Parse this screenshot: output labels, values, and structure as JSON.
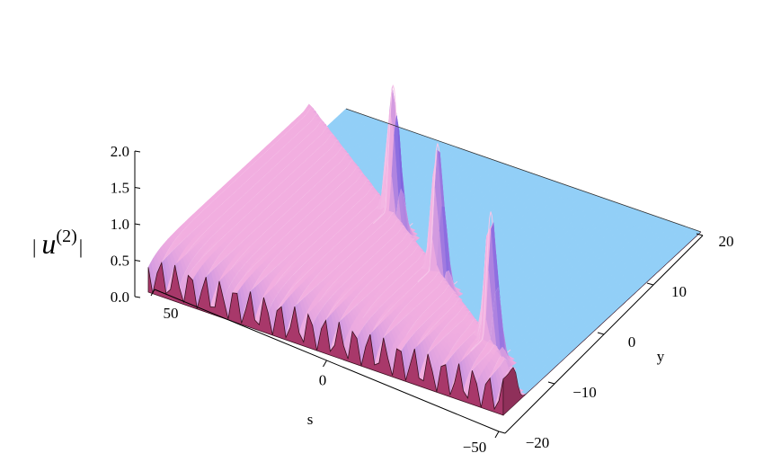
{
  "chart_data": {
    "type": "surface3d",
    "zlabel": {
      "delimiter": "|",
      "text": "u",
      "superscript": "(2)"
    },
    "xlabel": "s",
    "ylabel": "y",
    "xlim": [
      -50,
      50
    ],
    "xticks": [
      {
        "value": -50,
        "label": "−50"
      },
      0,
      50
    ],
    "ylim": [
      -20,
      20
    ],
    "yticks": [
      {
        "value": -20,
        "label": "−20"
      },
      {
        "value": -10,
        "label": "−10"
      },
      0,
      10,
      20
    ],
    "zlim": [
      0,
      2
    ],
    "zticks": [
      {
        "value": 0,
        "label": "0.0"
      },
      0.5,
      {
        "value": 1,
        "label": "1.0"
      },
      1.5,
      {
        "value": 2,
        "label": "2.0"
      }
    ],
    "surface": {
      "plateau": 0.5,
      "ripple_period": 4.2,
      "peaks": [
        {
          "s": 11,
          "y": 1.5,
          "height": 2.15
        },
        {
          "s": -11,
          "y": -5.3,
          "height": 2.15
        },
        {
          "s": -37,
          "y": -13.2,
          "height": 2.15
        }
      ]
    },
    "colors": {
      "surface": "#f2aee0",
      "shadow": "#6e5ae0",
      "floor": "#92cff7",
      "edge": "#a8386a"
    }
  }
}
